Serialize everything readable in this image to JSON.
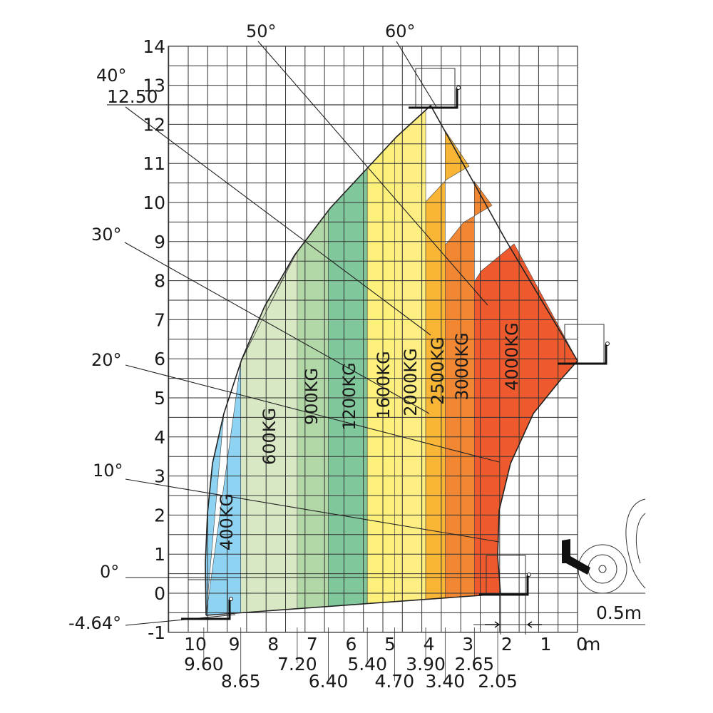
{
  "chart_data": {
    "type": "area",
    "title": "",
    "xlabel": "",
    "ylabel": "",
    "xlim": [
      0,
      10.5
    ],
    "ylim": [
      -1,
      14
    ],
    "x_unit": "m",
    "x_ticks": [
      10,
      9,
      8,
      7,
      6,
      5,
      4,
      3,
      2,
      1,
      0
    ],
    "y_ticks": [
      14,
      13,
      12,
      11,
      10,
      9,
      8,
      7,
      6,
      5,
      4,
      3,
      2,
      1,
      0,
      -1
    ],
    "max_height_label": "12.50",
    "x_reach_labels_row1": [
      "9.60",
      "7.20",
      "5.40",
      "3.90",
      "2.65"
    ],
    "x_reach_labels_row2": [
      "8.65",
      "6.40",
      "4.70",
      "3.40",
      "2.05"
    ],
    "scale_label": "0.5m",
    "boom_angles": [
      {
        "label": "60°",
        "angle": 60
      },
      {
        "label": "50°",
        "angle": 50
      },
      {
        "label": "40°",
        "angle": 40
      },
      {
        "label": "30°",
        "angle": 30
      },
      {
        "label": "20°",
        "angle": 20
      },
      {
        "label": "10°",
        "angle": 10
      },
      {
        "label": "0°",
        "angle": 0
      },
      {
        "label": "-4.64°",
        "angle": -4.64
      }
    ],
    "load_zones": [
      {
        "label": "400KG",
        "reach_from": 9.6,
        "reach_to": 8.65,
        "color": "#8fd3f3"
      },
      {
        "label": "600KG",
        "reach_from": 8.65,
        "reach_to": 7.2,
        "color": "#d9e8c4"
      },
      {
        "label": "900KG",
        "reach_from": 7.2,
        "reach_to": 6.4,
        "color": "#b2d8a8"
      },
      {
        "label": "1200KG",
        "reach_from": 6.4,
        "reach_to": 5.4,
        "color": "#80c79b"
      },
      {
        "label": "1600KG",
        "reach_from": 5.4,
        "reach_to": 4.7,
        "color": "#fdf17b"
      },
      {
        "label": "2000KG",
        "reach_from": 4.7,
        "reach_to": 3.9,
        "color": "#fcee80"
      },
      {
        "label": "2500KG",
        "reach_from": 3.9,
        "reach_to": 3.4,
        "color": "#f9b536"
      },
      {
        "label": "3000KG",
        "reach_from": 3.4,
        "reach_to": 2.65,
        "color": "#f18733"
      },
      {
        "label": "4000KG",
        "reach_from": 2.65,
        "reach_to": 0,
        "color": "#ee5a2d"
      }
    ]
  }
}
